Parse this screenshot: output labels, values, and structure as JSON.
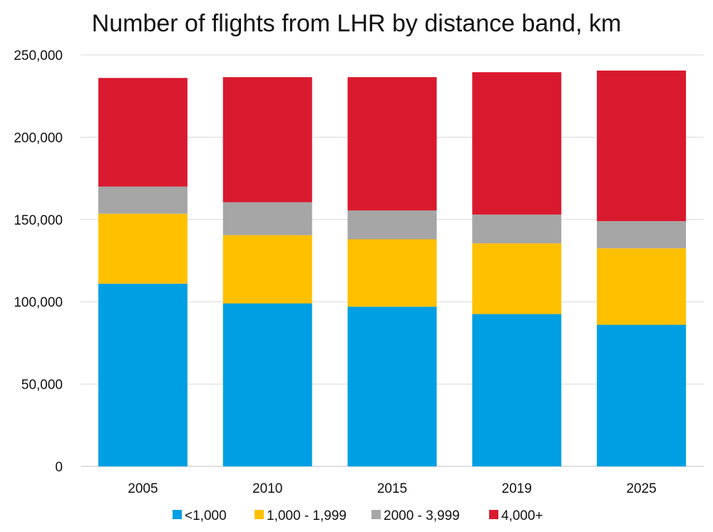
{
  "chart_data": {
    "type": "bar",
    "stacked": true,
    "title": "Number of flights from LHR by distance band, km",
    "xlabel": "",
    "ylabel": "",
    "categories": [
      "2005",
      "2010",
      "2015",
      "2019",
      "2025"
    ],
    "ylim": [
      0,
      250000
    ],
    "yticks": [
      0,
      50000,
      100000,
      150000,
      200000,
      250000
    ],
    "ytick_labels": [
      "0",
      "50,000",
      "100,000",
      "150,000",
      "200,000",
      "250,000"
    ],
    "grid": true,
    "legend_position": "bottom",
    "series": [
      {
        "name": "<1,000",
        "color": "#009fe3",
        "values": [
          111000,
          99000,
          97000,
          92500,
          86000
        ]
      },
      {
        "name": "1,000 - 1,999",
        "color": "#ffc000",
        "values": [
          42500,
          41500,
          41000,
          43000,
          46500
        ]
      },
      {
        "name": "2000 - 3,999",
        "color": "#a6a6a6",
        "values": [
          16500,
          20000,
          17500,
          17500,
          16500
        ]
      },
      {
        "name": "4,000+",
        "color": "#d91a2e",
        "values": [
          66000,
          76000,
          81000,
          86500,
          91500
        ]
      }
    ]
  }
}
